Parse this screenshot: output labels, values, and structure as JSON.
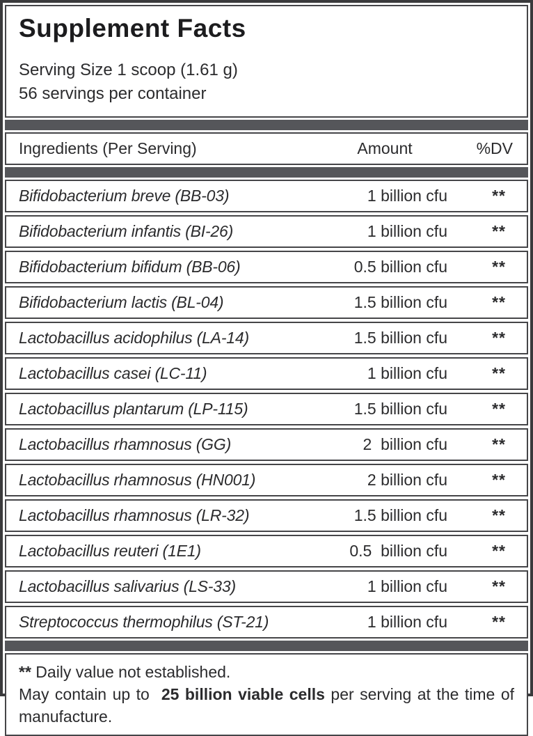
{
  "label": {
    "title": "Supplement Facts",
    "serving_size": "Serving Size 1 scoop (1.61 g)",
    "servings_per_container": "56 servings per container"
  },
  "table": {
    "headers": {
      "ingredient": "Ingredients (Per Serving)",
      "amount": "Amount",
      "dv": "%DV"
    },
    "rows": [
      {
        "ingredient": "Bifidobacterium breve (BB-03)",
        "amount": "1 billion cfu",
        "dv": "**"
      },
      {
        "ingredient": "Bifidobacterium infantis (BI-26)",
        "amount": "1 billion cfu",
        "dv": "**"
      },
      {
        "ingredient": "Bifidobacterium bifidum (BB-06)",
        "amount": "0.5 billion cfu",
        "dv": "**"
      },
      {
        "ingredient": "Bifidobacterium lactis (BL-04)",
        "amount": "1.5 billion cfu",
        "dv": "**"
      },
      {
        "ingredient": "Lactobacillus acidophilus (LA-14)",
        "amount": "1.5 billion cfu",
        "dv": "**"
      },
      {
        "ingredient": "Lactobacillus casei (LC-11)",
        "amount": "1 billion cfu",
        "dv": "**"
      },
      {
        "ingredient": "Lactobacillus plantarum (LP-115)",
        "amount": "1.5 billion cfu",
        "dv": "**"
      },
      {
        "ingredient": "Lactobacillus rhamnosus (GG)",
        "amount": "2  billion cfu",
        "dv": "**"
      },
      {
        "ingredient": "Lactobacillus rhamnosus (HN001)",
        "amount": "2 billion cfu",
        "dv": "**"
      },
      {
        "ingredient": "Lactobacillus rhamnosus (LR-32)",
        "amount": "1.5 billion cfu",
        "dv": "**"
      },
      {
        "ingredient": "Lactobacillus reuteri (1E1)",
        "amount": "0.5  billion cfu",
        "dv": "**"
      },
      {
        "ingredient": "Lactobacillus salivarius (LS-33)",
        "amount": "1 billion cfu",
        "dv": "**"
      },
      {
        "ingredient": "Streptococcus thermophilus (ST-21)",
        "amount": "1 billion cfu",
        "dv": "**"
      }
    ]
  },
  "footnotes": {
    "dv_marker": "**",
    "dv_text": " Daily value not established.",
    "may_contain_prefix": "May contain up to  ",
    "may_contain_bold": "25 billion viable cells",
    "may_contain_suffix": " per serving at the time of manufacture."
  },
  "colors": {
    "bar": "#55565a",
    "border": "#454548",
    "outer_border": "#3a3a3c",
    "text": "#2b2b2d"
  }
}
